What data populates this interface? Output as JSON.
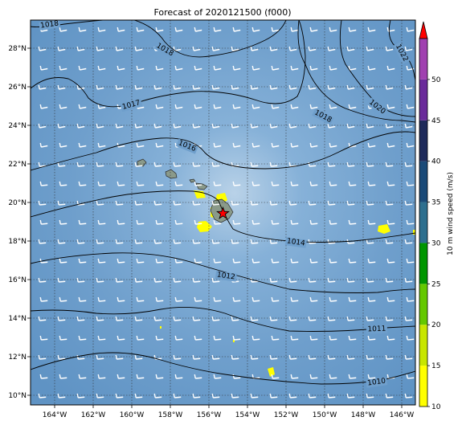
{
  "title": "Forecast of 2020121500 (f000)",
  "map": {
    "lon_range": [
      -165.3,
      -145.3
    ],
    "lat_range": [
      9.5,
      29.5
    ],
    "lon_ticks": [
      "164°W",
      "162°W",
      "160°W",
      "158°W",
      "156°W",
      "154°W",
      "152°W",
      "150°W",
      "148°W",
      "146°W"
    ],
    "lat_ticks": [
      "10°N",
      "12°N",
      "14°N",
      "16°N",
      "18°N",
      "20°N",
      "22°N",
      "24°N",
      "26°N",
      "28°N"
    ],
    "gridlines": "dotted",
    "background_color": "#6f9fcc",
    "star_marker": {
      "lon": -155.3,
      "lat": 19.45,
      "color": "#ff0000"
    },
    "isobar_labels": [
      "1018",
      "1018",
      "1017",
      "1016",
      "1018",
      "1020",
      "1022",
      "1014",
      "1012",
      "1011",
      "1010"
    ]
  },
  "colorbar": {
    "label": "10 m wind speed (m/s)",
    "ticks": [
      "10",
      "15",
      "20",
      "25",
      "30",
      "35",
      "40",
      "45",
      "50"
    ],
    "colors": [
      "#ffff00",
      "#c8e600",
      "#64c800",
      "#009600",
      "#2d6f8f",
      "#1a4a78",
      "#1e2a5a",
      "#6a2a9a",
      "#a040b0"
    ],
    "extend_color": "#ff0000"
  }
}
